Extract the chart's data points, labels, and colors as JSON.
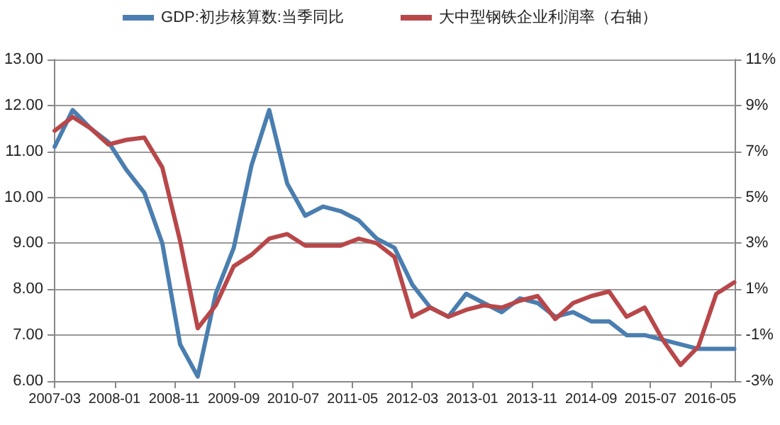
{
  "chart_data": {
    "type": "line",
    "x": [
      "2007-03",
      "2007-06",
      "2007-09",
      "2007-12",
      "2008-03",
      "2008-06",
      "2008-09",
      "2008-12",
      "2009-03",
      "2009-06",
      "2009-09",
      "2009-12",
      "2010-03",
      "2010-06",
      "2010-09",
      "2010-12",
      "2011-03",
      "2011-06",
      "2011-09",
      "2011-12",
      "2012-03",
      "2012-06",
      "2012-09",
      "2012-12",
      "2013-03",
      "2013-06",
      "2013-09",
      "2013-12",
      "2014-03",
      "2014-06",
      "2014-09",
      "2014-12",
      "2015-03",
      "2015-06",
      "2015-09",
      "2015-12",
      "2016-03",
      "2016-06",
      "2016-09"
    ],
    "series": [
      {
        "name": "GDP:初步核算数:当季同比",
        "color": "#4a7eb0",
        "values": [
          11.1,
          11.9,
          11.5,
          11.2,
          10.6,
          10.1,
          9.0,
          6.8,
          6.1,
          7.9,
          8.9,
          10.7,
          11.9,
          10.3,
          9.6,
          9.8,
          9.7,
          9.5,
          9.1,
          8.9,
          8.1,
          7.6,
          7.4,
          7.9,
          7.7,
          7.5,
          7.8,
          7.7,
          7.4,
          7.5,
          7.3,
          7.3,
          7.0,
          7.0,
          6.9,
          6.8,
          6.7,
          6.7,
          6.7
        ]
      },
      {
        "name": "大中型钢铁企业利润率（右轴）",
        "color": "#b8474a",
        "axis": "y2",
        "values": [
          7.9,
          8.5,
          8.0,
          7.3,
          7.5,
          7.6,
          6.3,
          3.1,
          -0.7,
          0.3,
          2.0,
          2.5,
          3.2,
          3.4,
          2.9,
          2.9,
          2.9,
          3.2,
          3.0,
          2.4,
          -0.2,
          0.2,
          -0.2,
          0.1,
          0.3,
          0.2,
          0.5,
          0.7,
          -0.3,
          0.4,
          0.7,
          0.9,
          -0.2,
          0.2,
          -1.2,
          -2.3,
          -1.5,
          0.8,
          1.3
        ]
      }
    ],
    "xlim": [
      "2007-03",
      "2016-09"
    ],
    "xticks": [
      "2007-03",
      "2008-01",
      "2008-11",
      "2009-09",
      "2010-07",
      "2011-05",
      "2012-03",
      "2013-01",
      "2013-11",
      "2014-09",
      "2015-07",
      "2016-05"
    ],
    "ylim": [
      6,
      13
    ],
    "yticks": [
      {
        "value": 6,
        "label": "6.00"
      },
      {
        "value": 7,
        "label": "7.00"
      },
      {
        "value": 8,
        "label": "8.00"
      },
      {
        "value": 9,
        "label": "9.00"
      },
      {
        "value": 10,
        "label": "10.00"
      },
      {
        "value": 11,
        "label": "11.00"
      },
      {
        "value": 12,
        "label": "12.00"
      },
      {
        "value": 13,
        "label": "13.00"
      }
    ],
    "y2lim": [
      -3,
      11
    ],
    "y2ticks": [
      {
        "value": -3,
        "label": "-3%"
      },
      {
        "value": -1,
        "label": "-1%"
      },
      {
        "value": 1,
        "label": "1%"
      },
      {
        "value": 3,
        "label": "3%"
      },
      {
        "value": 5,
        "label": "5%"
      },
      {
        "value": 7,
        "label": "7%"
      },
      {
        "value": 9,
        "label": "9%"
      },
      {
        "value": 11,
        "label": "11%"
      }
    ],
    "grid": "y",
    "legend": "top",
    "marker": "none",
    "line_style": "solid"
  }
}
